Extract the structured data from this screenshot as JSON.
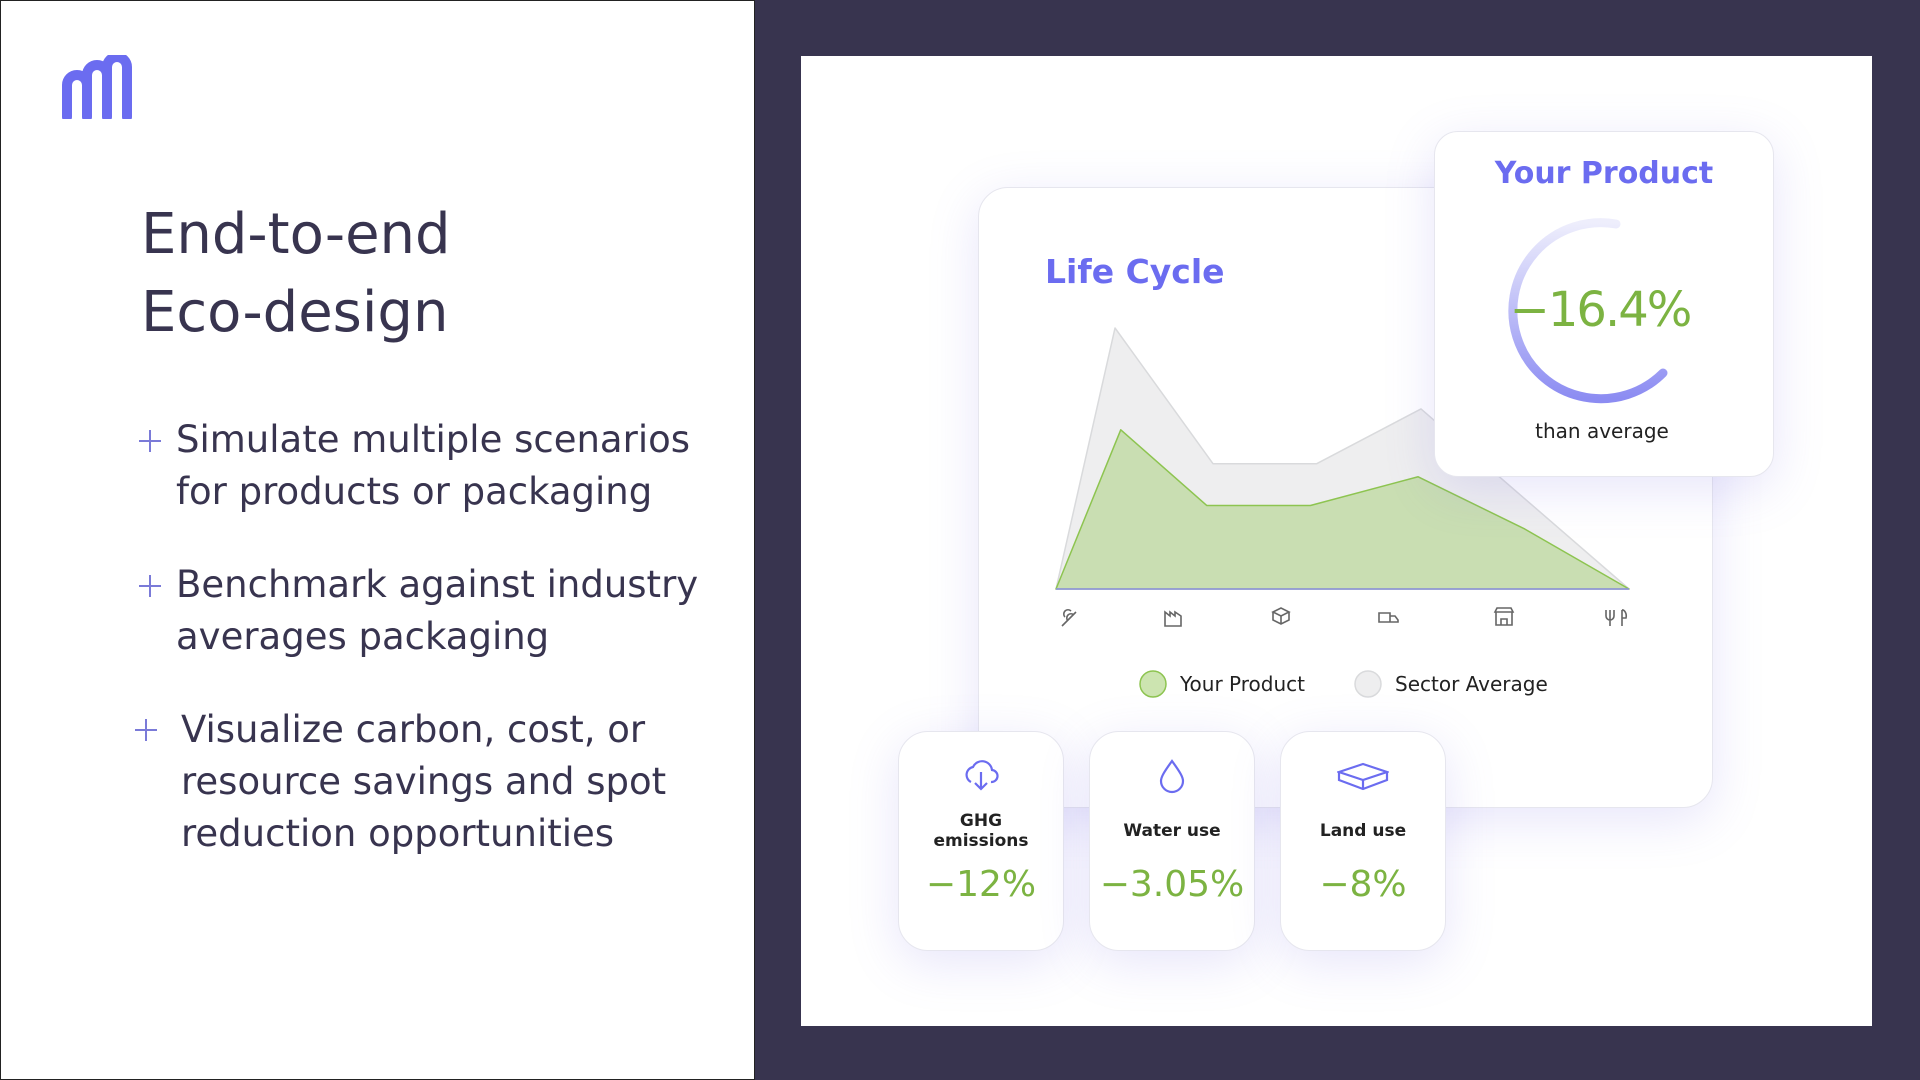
{
  "left": {
    "title": [
      "End-to-end",
      "Eco-design"
    ],
    "bullets": [
      [
        "Simulate multiple scenarios",
        "for products or packaging"
      ],
      [
        "Benchmark against industry",
        "averages packaging"
      ],
      [
        "Visualize carbon, cost, or",
        "resource savings and spot",
        "reduction opportunities"
      ]
    ]
  },
  "chart_data": {
    "type": "area",
    "title": "Life Cycle",
    "xlim": [
      0,
      100
    ],
    "ylim": [
      0,
      100
    ],
    "series": [
      {
        "name": "Your Product",
        "color": "#8dc450",
        "x": [
          0,
          11.3,
          26.3,
          44.4,
          63.2,
          81.8,
          100
        ],
        "values": [
          0,
          61,
          32,
          32,
          43,
          23,
          0
        ]
      },
      {
        "name": "Sector Average",
        "color": "#d9dadc",
        "x": [
          0,
          10.3,
          27.4,
          45.5,
          63.7,
          100
        ],
        "values": [
          0,
          100,
          48,
          48,
          69,
          0
        ]
      }
    ]
  },
  "product_card": {
    "title": "Your Product",
    "value": "−16.4%",
    "caption": "than average"
  },
  "metrics": [
    {
      "label": "GHG emissions",
      "value": "−12%"
    },
    {
      "label": "Water use",
      "value": "−3.05%"
    },
    {
      "label": "Land use",
      "value": "−8%"
    }
  ]
}
